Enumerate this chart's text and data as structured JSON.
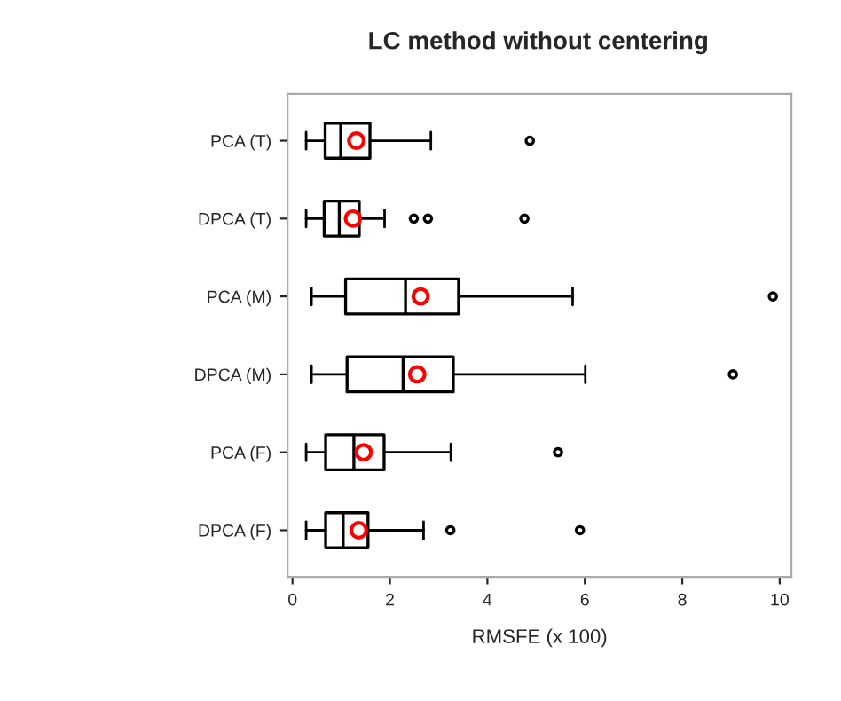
{
  "chart_data": {
    "type": "box",
    "title": "LC method without centering",
    "xlabel": "RMSFE (x 100)",
    "orientation": "horizontal",
    "categories": [
      "PCA (T)",
      "DPCA (T)",
      "PCA (M)",
      "DPCA (M)",
      "PCA (F)",
      "DPCA (F)"
    ],
    "boxes": [
      {
        "low": 0.28,
        "q1": 0.67,
        "median": 0.99,
        "q3": 1.59,
        "high": 2.84,
        "mean": 1.31,
        "outliers": [
          4.87
        ]
      },
      {
        "low": 0.28,
        "q1": 0.65,
        "median": 0.96,
        "q3": 1.37,
        "high": 1.89,
        "mean": 1.24,
        "outliers": [
          2.49,
          2.78,
          4.76
        ]
      },
      {
        "low": 0.39,
        "q1": 1.09,
        "median": 2.32,
        "q3": 3.41,
        "high": 5.75,
        "mean": 2.63,
        "outliers": [
          9.86
        ]
      },
      {
        "low": 0.39,
        "q1": 1.12,
        "median": 2.27,
        "q3": 3.3,
        "high": 6.01,
        "mean": 2.56,
        "outliers": [
          9.04
        ]
      },
      {
        "low": 0.28,
        "q1": 0.68,
        "median": 1.26,
        "q3": 1.88,
        "high": 3.25,
        "mean": 1.46,
        "outliers": [
          5.45
        ]
      },
      {
        "low": 0.28,
        "q1": 0.68,
        "median": 1.04,
        "q3": 1.55,
        "high": 2.69,
        "mean": 1.36,
        "outliers": [
          3.24,
          5.9
        ]
      }
    ],
    "color": "#000000",
    "xlim": [
      -0.1,
      10.24
    ],
    "xticks": [
      0,
      2,
      4,
      6,
      8,
      10
    ],
    "grid": false
  }
}
